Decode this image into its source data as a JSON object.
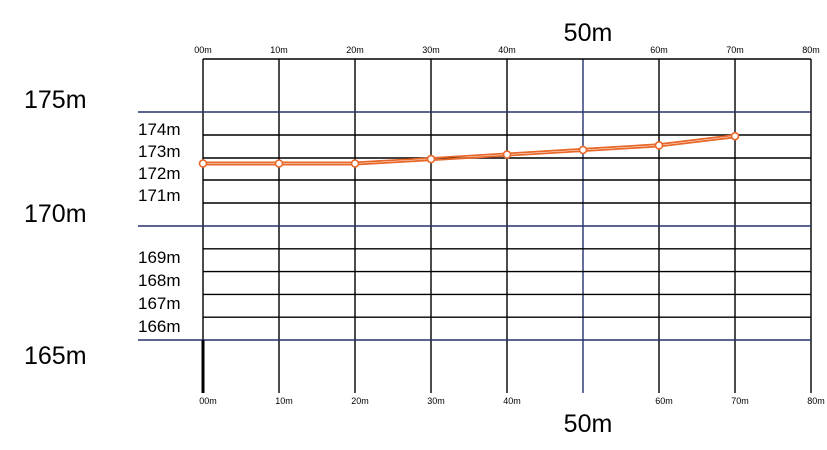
{
  "chart_data": {
    "type": "line",
    "title": "",
    "xlabel": "",
    "ylabel": "",
    "x_ticks": [
      "00m",
      "10m",
      "20m",
      "30m",
      "40m",
      "50m",
      "60m",
      "70m",
      "80m"
    ],
    "x_marker_top": "50m",
    "x_marker_bottom": "50m",
    "xlim": [
      0,
      80
    ],
    "y_major_labels": [
      "175m",
      "170m",
      "165m"
    ],
    "y_minor_labels": [
      "174m",
      "173m",
      "172m",
      "171m",
      "169m",
      "168m",
      "167m",
      "166m"
    ],
    "grid": true,
    "colors": {
      "grid": "#000000",
      "major_grid": "#26326e",
      "series": "#e8682a"
    },
    "series": [
      {
        "values_upper": [
          {
            "x": 0,
            "y": 172.8
          },
          {
            "x": 10,
            "y": 172.8
          },
          {
            "x": 20,
            "y": 172.8
          },
          {
            "x": 30,
            "y": 173.0
          },
          {
            "x": 40,
            "y": 173.2
          },
          {
            "x": 50,
            "y": 173.4
          },
          {
            "x": 60,
            "y": 173.6
          },
          {
            "x": 70,
            "y": 174.0
          }
        ],
        "values_lower": [
          {
            "x": 0,
            "y": 172.7
          },
          {
            "x": 10,
            "y": 172.7
          },
          {
            "x": 20,
            "y": 172.7
          },
          {
            "x": 30,
            "y": 172.9
          },
          {
            "x": 40,
            "y": 173.1
          },
          {
            "x": 50,
            "y": 173.3
          },
          {
            "x": 60,
            "y": 173.5
          },
          {
            "x": 70,
            "y": 173.9
          }
        ]
      }
    ]
  }
}
